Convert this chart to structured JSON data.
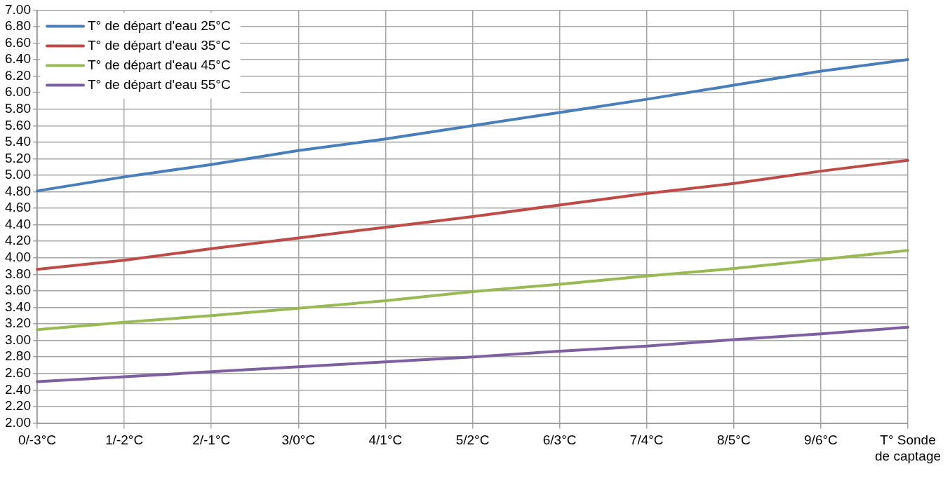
{
  "chart_data": {
    "type": "line",
    "categories": [
      "0/-3°C",
      "1/-2°C",
      "2/-1°C",
      "3/0°C",
      "4/1°C",
      "5/2°C",
      "6/3°C",
      "7/4°C",
      "8/5°C",
      "9/6°C",
      "T° Sonde de captage"
    ],
    "series": [
      {
        "name": "T° de départ d'eau 25°C",
        "color": "#4a7ebb",
        "values": [
          4.81,
          4.98,
          5.13,
          5.3,
          5.44,
          5.6,
          5.76,
          5.92,
          6.09,
          6.26,
          6.4
        ]
      },
      {
        "name": "T° de départ d'eau 35°C",
        "color": "#be4b48",
        "values": [
          3.86,
          3.97,
          4.11,
          4.24,
          4.37,
          4.5,
          4.64,
          4.78,
          4.9,
          5.05,
          5.18
        ]
      },
      {
        "name": "T° de départ d'eau 45°C",
        "color": "#98b954",
        "values": [
          3.13,
          3.22,
          3.3,
          3.39,
          3.48,
          3.59,
          3.68,
          3.78,
          3.87,
          3.98,
          4.09
        ]
      },
      {
        "name": "T° de départ d'eau 55°C",
        "color": "#7d60a0",
        "values": [
          2.5,
          2.56,
          2.62,
          2.68,
          2.74,
          2.8,
          2.87,
          2.93,
          3.01,
          3.08,
          3.16
        ]
      }
    ],
    "ylim": [
      2,
      7
    ],
    "yticks": [
      {
        "value": 2,
        "label": "2.00"
      },
      {
        "value": 2.2,
        "label": "2.20"
      },
      {
        "value": 2.4,
        "label": "2.40"
      },
      {
        "value": 2.6,
        "label": "2.60"
      },
      {
        "value": 2.8,
        "label": "2.80"
      },
      {
        "value": 3,
        "label": "3.00"
      },
      {
        "value": 3.2,
        "label": "3.20"
      },
      {
        "value": 3.4,
        "label": "3.40"
      },
      {
        "value": 3.6,
        "label": "3.60"
      },
      {
        "value": 3.8,
        "label": "3.80"
      },
      {
        "value": 4,
        "label": "4.00"
      },
      {
        "value": 4.2,
        "label": "4.20"
      },
      {
        "value": 4.4,
        "label": "4.40"
      },
      {
        "value": 4.6,
        "label": "4.60"
      },
      {
        "value": 4.8,
        "label": "4.80"
      },
      {
        "value": 5,
        "label": "5.00"
      },
      {
        "value": 5.2,
        "label": "5.20"
      },
      {
        "value": 5.4,
        "label": "5.40"
      },
      {
        "value": 5.6,
        "label": "5.60"
      },
      {
        "value": 5.8,
        "label": "5.80"
      },
      {
        "value": 6,
        "label": "6.00"
      },
      {
        "value": 6.2,
        "label": "6.20"
      },
      {
        "value": 6.4,
        "label": "6.40"
      },
      {
        "value": 6.6,
        "label": "6.60"
      },
      {
        "value": 6.8,
        "label": "6.80"
      },
      {
        "value": 7,
        "label": "7.00"
      }
    ],
    "grid": true,
    "legend": "top left",
    "marker": "none",
    "line_style": "solid"
  }
}
